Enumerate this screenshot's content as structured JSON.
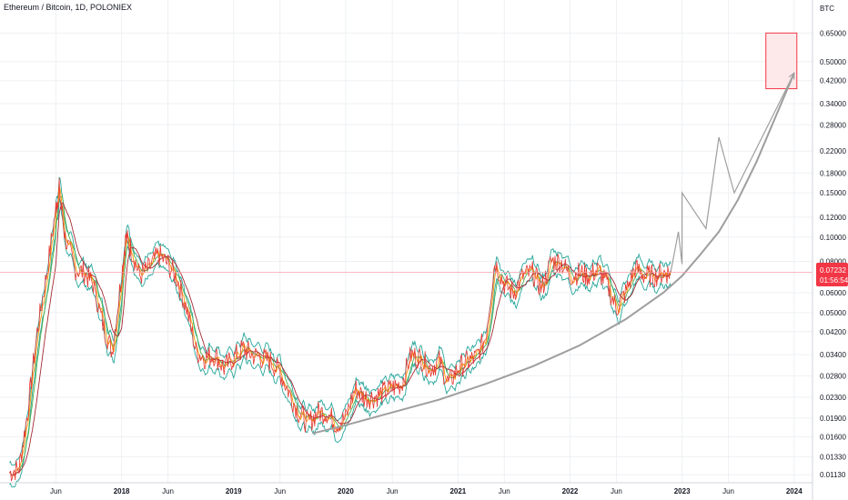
{
  "header": {
    "title": "Ethereum / Bitcoin, 1D, POLONIEX"
  },
  "chart_data": {
    "type": "line",
    "title": "Ethereum / Bitcoin, 1D, POLONIEX",
    "unit_label": "BTC",
    "y_scale": "log",
    "ylim": [
      0.0105,
      0.88
    ],
    "y_ticks": [
      "0.65000",
      "0.50000",
      "0.42000",
      "0.34000",
      "0.28000",
      "0.22000",
      "0.18000",
      "0.15000",
      "0.12000",
      "0.10000",
      "0.08000",
      "0.06000",
      "0.05000",
      "0.04200",
      "0.03400",
      "0.02800",
      "0.02300",
      "0.01900",
      "0.01600",
      "0.01330",
      "0.01130"
    ],
    "x_ticks": [
      {
        "label": "Jun",
        "date": "2017-06-01"
      },
      {
        "label": "2018",
        "date": "2018-01-01",
        "bold": true
      },
      {
        "label": "Jun",
        "date": "2018-06-01"
      },
      {
        "label": "2019",
        "date": "2019-01-01",
        "bold": true
      },
      {
        "label": "Jun",
        "date": "2019-06-01"
      },
      {
        "label": "2020",
        "date": "2020-01-01",
        "bold": true
      },
      {
        "label": "Jun",
        "date": "2020-06-01"
      },
      {
        "label": "2021",
        "date": "2021-01-01",
        "bold": true
      },
      {
        "label": "Jun",
        "date": "2021-06-01"
      },
      {
        "label": "2022",
        "date": "2022-01-01",
        "bold": true
      },
      {
        "label": "Jun",
        "date": "2022-06-01"
      },
      {
        "label": "2023",
        "date": "2023-01-01",
        "bold": true
      },
      {
        "label": "Jun",
        "date": "2023-06-01"
      },
      {
        "label": "2024",
        "date": "2024-01-01",
        "bold": true
      }
    ],
    "current_price": {
      "value": 0.07232,
      "label": "0.07232",
      "countdown": "01:56:54",
      "color": "#f23645"
    },
    "price_series": [
      [
        "2017-01-01",
        0.0115
      ],
      [
        "2017-02-01",
        0.012
      ],
      [
        "2017-03-01",
        0.02
      ],
      [
        "2017-04-01",
        0.042
      ],
      [
        "2017-05-01",
        0.07
      ],
      [
        "2017-06-01",
        0.13
      ],
      [
        "2017-06-12",
        0.155
      ],
      [
        "2017-07-01",
        0.1
      ],
      [
        "2017-08-01",
        0.075
      ],
      [
        "2017-09-01",
        0.072
      ],
      [
        "2017-10-01",
        0.065
      ],
      [
        "2017-11-01",
        0.045
      ],
      [
        "2017-12-01",
        0.035
      ],
      [
        "2018-01-01",
        0.07
      ],
      [
        "2018-01-15",
        0.1
      ],
      [
        "2018-02-01",
        0.09
      ],
      [
        "2018-03-01",
        0.07
      ],
      [
        "2018-04-01",
        0.075
      ],
      [
        "2018-05-01",
        0.085
      ],
      [
        "2018-06-01",
        0.078
      ],
      [
        "2018-07-01",
        0.068
      ],
      [
        "2018-08-01",
        0.052
      ],
      [
        "2018-09-01",
        0.035
      ],
      [
        "2018-10-01",
        0.033
      ],
      [
        "2018-11-01",
        0.034
      ],
      [
        "2018-12-01",
        0.03
      ],
      [
        "2019-01-01",
        0.033
      ],
      [
        "2019-02-01",
        0.036
      ],
      [
        "2019-03-01",
        0.034
      ],
      [
        "2019-04-01",
        0.033
      ],
      [
        "2019-05-01",
        0.032
      ],
      [
        "2019-06-01",
        0.029
      ],
      [
        "2019-07-01",
        0.024
      ],
      [
        "2019-08-01",
        0.02
      ],
      [
        "2019-09-01",
        0.018
      ],
      [
        "2019-10-01",
        0.02
      ],
      [
        "2019-11-01",
        0.02
      ],
      [
        "2019-12-01",
        0.018
      ],
      [
        "2020-01-01",
        0.019
      ],
      [
        "2020-02-01",
        0.025
      ],
      [
        "2020-03-01",
        0.023
      ],
      [
        "2020-04-01",
        0.023
      ],
      [
        "2020-05-01",
        0.024
      ],
      [
        "2020-06-01",
        0.025
      ],
      [
        "2020-07-01",
        0.026
      ],
      [
        "2020-08-01",
        0.034
      ],
      [
        "2020-09-01",
        0.033
      ],
      [
        "2020-10-01",
        0.03
      ],
      [
        "2020-11-01",
        0.032
      ],
      [
        "2020-12-01",
        0.026
      ],
      [
        "2021-01-01",
        0.03
      ],
      [
        "2021-02-01",
        0.032
      ],
      [
        "2021-03-01",
        0.033
      ],
      [
        "2021-04-01",
        0.04
      ],
      [
        "2021-05-01",
        0.08
      ],
      [
        "2021-06-01",
        0.065
      ],
      [
        "2021-07-01",
        0.06
      ],
      [
        "2021-08-01",
        0.07
      ],
      [
        "2021-09-01",
        0.072
      ],
      [
        "2021-10-01",
        0.062
      ],
      [
        "2021-11-01",
        0.08
      ],
      [
        "2021-12-01",
        0.08
      ],
      [
        "2022-01-01",
        0.07
      ],
      [
        "2022-02-01",
        0.072
      ],
      [
        "2022-03-01",
        0.07
      ],
      [
        "2022-04-01",
        0.074
      ],
      [
        "2022-05-01",
        0.065
      ],
      [
        "2022-06-01",
        0.052
      ],
      [
        "2022-07-01",
        0.06
      ],
      [
        "2022-08-01",
        0.075
      ],
      [
        "2022-09-01",
        0.07
      ],
      [
        "2022-10-01",
        0.07
      ],
      [
        "2022-11-01",
        0.072
      ],
      [
        "2022-11-25",
        0.0723
      ]
    ],
    "curve_series": [
      [
        "2019-09-15",
        0.0165
      ],
      [
        "2020-01-01",
        0.0178
      ],
      [
        "2020-06-01",
        0.02
      ],
      [
        "2020-11-01",
        0.0225
      ],
      [
        "2021-04-01",
        0.026
      ],
      [
        "2021-09-01",
        0.0305
      ],
      [
        "2022-02-01",
        0.037
      ],
      [
        "2022-07-01",
        0.047
      ],
      [
        "2022-11-01",
        0.06
      ],
      [
        "2023-01-01",
        0.07
      ],
      [
        "2023-03-01",
        0.085
      ],
      [
        "2023-05-01",
        0.105
      ],
      [
        "2023-07-01",
        0.14
      ],
      [
        "2023-09-01",
        0.2
      ],
      [
        "2023-11-01",
        0.3
      ],
      [
        "2024-01-01",
        0.45
      ]
    ],
    "projection_series": [
      [
        "2022-11-25",
        0.0723
      ],
      [
        "2022-12-20",
        0.105
      ],
      [
        "2023-01-01",
        0.078
      ],
      [
        "2023-01-01",
        0.15
      ],
      [
        "2023-03-20",
        0.108
      ],
      [
        "2023-05-01",
        0.25
      ],
      [
        "2023-06-20",
        0.15
      ],
      [
        "2024-01-01",
        0.45
      ]
    ],
    "target_box": {
      "x0": "2023-10-01",
      "x1": "2024-01-10",
      "y0": 0.39,
      "y1": 0.65,
      "stroke": "#f23645",
      "fill": "#fde8ea"
    },
    "colors": {
      "price": "#e53935",
      "ma_teal": "#26a69a",
      "ma_green": "#4caf50",
      "ma_orange": "#ff9800",
      "ma_maroon": "#a62a35",
      "curve": "#9e9e9e",
      "projection": "#9e9e9e",
      "grid": "#eef0f3"
    }
  }
}
